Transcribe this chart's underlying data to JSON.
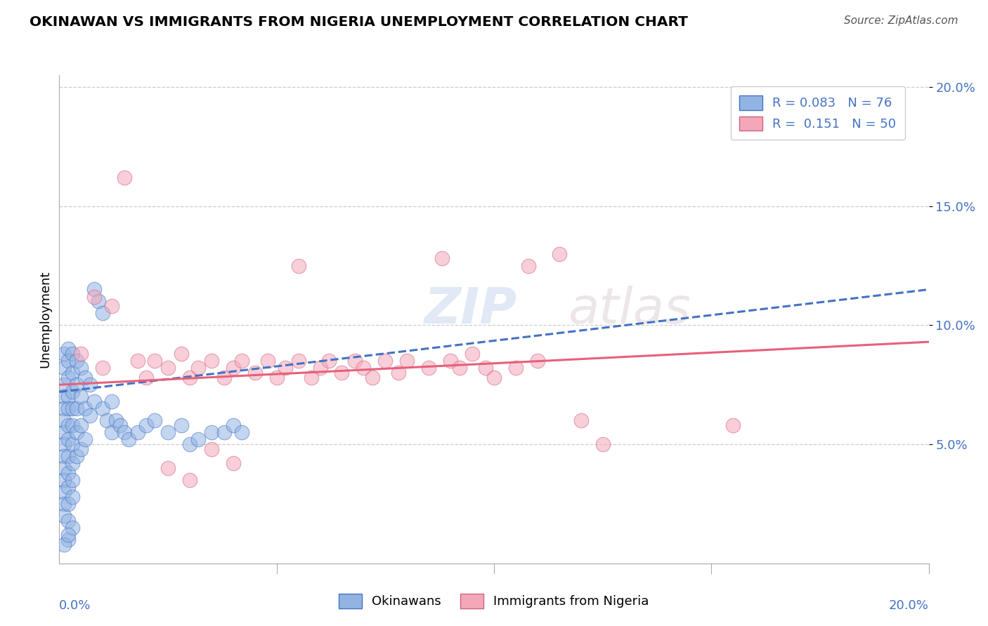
{
  "title": "OKINAWAN VS IMMIGRANTS FROM NIGERIA UNEMPLOYMENT CORRELATION CHART",
  "source": "Source: ZipAtlas.com",
  "ylabel": "Unemployment",
  "watermark_zip": "ZIP",
  "watermark_atlas": "atlas",
  "blue_color": "#92b4e3",
  "pink_color": "#f4a7b9",
  "blue_line_color": "#4472c4",
  "pink_line_color": "#e8607a",
  "blue_scatter": [
    [
      0.001,
      0.088
    ],
    [
      0.001,
      0.082
    ],
    [
      0.001,
      0.075
    ],
    [
      0.001,
      0.07
    ],
    [
      0.001,
      0.065
    ],
    [
      0.001,
      0.06
    ],
    [
      0.001,
      0.055
    ],
    [
      0.001,
      0.05
    ],
    [
      0.001,
      0.045
    ],
    [
      0.001,
      0.04
    ],
    [
      0.001,
      0.035
    ],
    [
      0.001,
      0.03
    ],
    [
      0.001,
      0.025
    ],
    [
      0.001,
      0.02
    ],
    [
      0.002,
      0.09
    ],
    [
      0.002,
      0.085
    ],
    [
      0.002,
      0.078
    ],
    [
      0.002,
      0.07
    ],
    [
      0.002,
      0.065
    ],
    [
      0.002,
      0.058
    ],
    [
      0.002,
      0.052
    ],
    [
      0.002,
      0.045
    ],
    [
      0.002,
      0.038
    ],
    [
      0.002,
      0.032
    ],
    [
      0.002,
      0.025
    ],
    [
      0.002,
      0.018
    ],
    [
      0.003,
      0.088
    ],
    [
      0.003,
      0.08
    ],
    [
      0.003,
      0.072
    ],
    [
      0.003,
      0.065
    ],
    [
      0.003,
      0.058
    ],
    [
      0.003,
      0.05
    ],
    [
      0.003,
      0.042
    ],
    [
      0.003,
      0.035
    ],
    [
      0.003,
      0.028
    ],
    [
      0.004,
      0.085
    ],
    [
      0.004,
      0.075
    ],
    [
      0.004,
      0.065
    ],
    [
      0.004,
      0.055
    ],
    [
      0.004,
      0.045
    ],
    [
      0.005,
      0.082
    ],
    [
      0.005,
      0.07
    ],
    [
      0.005,
      0.058
    ],
    [
      0.005,
      0.048
    ],
    [
      0.006,
      0.078
    ],
    [
      0.006,
      0.065
    ],
    [
      0.006,
      0.052
    ],
    [
      0.007,
      0.075
    ],
    [
      0.007,
      0.062
    ],
    [
      0.008,
      0.115
    ],
    [
      0.008,
      0.068
    ],
    [
      0.009,
      0.11
    ],
    [
      0.01,
      0.105
    ],
    [
      0.01,
      0.065
    ],
    [
      0.011,
      0.06
    ],
    [
      0.012,
      0.068
    ],
    [
      0.012,
      0.055
    ],
    [
      0.013,
      0.06
    ],
    [
      0.014,
      0.058
    ],
    [
      0.015,
      0.055
    ],
    [
      0.016,
      0.052
    ],
    [
      0.018,
      0.055
    ],
    [
      0.02,
      0.058
    ],
    [
      0.022,
      0.06
    ],
    [
      0.025,
      0.055
    ],
    [
      0.028,
      0.058
    ],
    [
      0.03,
      0.05
    ],
    [
      0.032,
      0.052
    ],
    [
      0.035,
      0.055
    ],
    [
      0.038,
      0.055
    ],
    [
      0.04,
      0.058
    ],
    [
      0.042,
      0.055
    ],
    [
      0.002,
      0.01
    ],
    [
      0.003,
      0.015
    ],
    [
      0.001,
      0.008
    ],
    [
      0.002,
      0.012
    ]
  ],
  "pink_scatter": [
    [
      0.005,
      0.088
    ],
    [
      0.008,
      0.112
    ],
    [
      0.01,
      0.082
    ],
    [
      0.012,
      0.108
    ],
    [
      0.015,
      0.162
    ],
    [
      0.018,
      0.085
    ],
    [
      0.02,
      0.078
    ],
    [
      0.022,
      0.085
    ],
    [
      0.025,
      0.082
    ],
    [
      0.025,
      0.04
    ],
    [
      0.028,
      0.088
    ],
    [
      0.03,
      0.078
    ],
    [
      0.03,
      0.035
    ],
    [
      0.032,
      0.082
    ],
    [
      0.035,
      0.085
    ],
    [
      0.035,
      0.048
    ],
    [
      0.038,
      0.078
    ],
    [
      0.04,
      0.082
    ],
    [
      0.04,
      0.042
    ],
    [
      0.042,
      0.085
    ],
    [
      0.045,
      0.08
    ],
    [
      0.048,
      0.085
    ],
    [
      0.05,
      0.078
    ],
    [
      0.052,
      0.082
    ],
    [
      0.055,
      0.085
    ],
    [
      0.055,
      0.125
    ],
    [
      0.058,
      0.078
    ],
    [
      0.06,
      0.082
    ],
    [
      0.062,
      0.085
    ],
    [
      0.065,
      0.08
    ],
    [
      0.068,
      0.085
    ],
    [
      0.07,
      0.082
    ],
    [
      0.072,
      0.078
    ],
    [
      0.075,
      0.085
    ],
    [
      0.078,
      0.08
    ],
    [
      0.08,
      0.085
    ],
    [
      0.085,
      0.082
    ],
    [
      0.088,
      0.128
    ],
    [
      0.09,
      0.085
    ],
    [
      0.092,
      0.082
    ],
    [
      0.095,
      0.088
    ],
    [
      0.098,
      0.082
    ],
    [
      0.1,
      0.078
    ],
    [
      0.105,
      0.082
    ],
    [
      0.108,
      0.125
    ],
    [
      0.11,
      0.085
    ],
    [
      0.115,
      0.13
    ],
    [
      0.12,
      0.06
    ],
    [
      0.125,
      0.05
    ],
    [
      0.155,
      0.058
    ]
  ],
  "blue_line": [
    [
      0.0,
      0.072
    ],
    [
      0.2,
      0.115
    ]
  ],
  "pink_line": [
    [
      0.0,
      0.075
    ],
    [
      0.2,
      0.093
    ]
  ],
  "xlim": [
    0.0,
    0.2
  ],
  "ylim": [
    0.0,
    0.205
  ],
  "yticks": [
    0.05,
    0.1,
    0.15,
    0.2
  ],
  "ytick_labels": [
    "5.0%",
    "10.0%",
    "15.0%",
    "20.0%"
  ],
  "grid_color": "#cccccc",
  "bg_color": "#ffffff",
  "tick_color": "#4472c4"
}
